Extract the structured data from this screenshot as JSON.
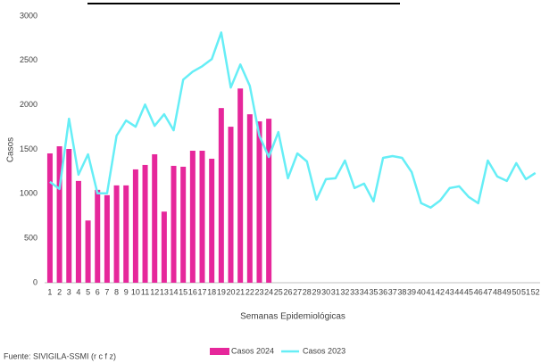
{
  "chart_data": {
    "type": "bar_line",
    "categories": [
      1,
      2,
      3,
      4,
      5,
      6,
      7,
      8,
      9,
      10,
      11,
      12,
      13,
      14,
      15,
      16,
      17,
      18,
      19,
      20,
      21,
      22,
      23,
      24,
      25,
      26,
      27,
      28,
      29,
      30,
      31,
      32,
      33,
      34,
      35,
      36,
      37,
      38,
      39,
      40,
      41,
      42,
      43,
      44,
      45,
      46,
      47,
      48,
      49,
      50,
      51,
      52
    ],
    "series": [
      {
        "name": "Casos 2024",
        "type": "bar",
        "color": "#e6279b",
        "values": [
          1455,
          1535,
          1505,
          1145,
          700,
          1045,
          985,
          1095,
          1095,
          1275,
          1325,
          1445,
          800,
          1315,
          1305,
          1485,
          1485,
          1395,
          1965,
          1755,
          2185,
          1895,
          1815,
          1845,
          null,
          null,
          null,
          null,
          null,
          null,
          null,
          null,
          null,
          null,
          null,
          null,
          null,
          null,
          null,
          null,
          null,
          null,
          null,
          null,
          null,
          null,
          null,
          null,
          null,
          null,
          null,
          null
        ]
      },
      {
        "name": "Casos 2023",
        "type": "line",
        "color": "#66eef6",
        "values": [
          1135,
          1055,
          1845,
          1215,
          1445,
          1005,
          1005,
          1655,
          1825,
          1755,
          2005,
          1765,
          1895,
          1715,
          2285,
          2375,
          2435,
          2515,
          2815,
          2195,
          2455,
          2215,
          1655,
          1415,
          1695,
          1175,
          1455,
          1365,
          935,
          1165,
          1175,
          1375,
          1065,
          1115,
          915,
          1405,
          1425,
          1405,
          1245,
          895,
          845,
          925,
          1065,
          1085,
          965,
          895,
          1375,
          1195,
          1145,
          1345,
          1165,
          1235
        ]
      }
    ],
    "ylim": [
      0,
      3000
    ],
    "yticks": [
      0,
      500,
      1000,
      1500,
      2000,
      2500,
      3000
    ],
    "ylabel": "Casos",
    "xlabel": "Semanas Epidemiológicas",
    "source": "Fuente: SIVIGILA-SSMI  (r c f z)"
  }
}
